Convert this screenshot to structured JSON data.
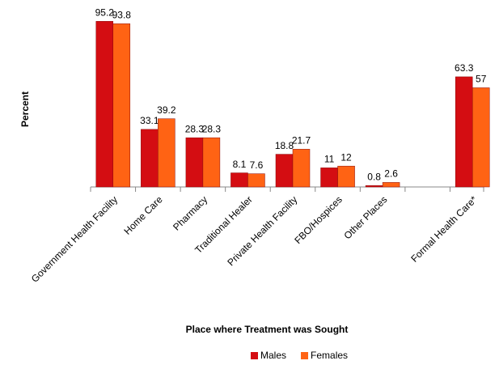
{
  "chart_data": {
    "type": "bar",
    "categories": [
      "Government Health Facility",
      "Home Care",
      "Pharmacy",
      "Traditional Healer",
      "Private Health Facility",
      "FBO/Hospices",
      "Other Places",
      null,
      "Formal Health Care*"
    ],
    "series": [
      {
        "name": "Males",
        "color": "#d40d12",
        "values": [
          95.2,
          33.1,
          28.3,
          8.1,
          18.8,
          11,
          0.8,
          null,
          63.3
        ]
      },
      {
        "name": "Females",
        "color": "#ff6314",
        "values": [
          93.8,
          39.2,
          28.3,
          7.6,
          21.7,
          12,
          2.6,
          null,
          57
        ]
      }
    ],
    "y_label": "Percent",
    "x_label": "Place where Treatment was Sought",
    "ylim": [
      0,
      100
    ],
    "legend": "bottom"
  }
}
